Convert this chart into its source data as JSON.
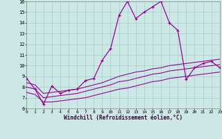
{
  "xlabel": "Windchill (Refroidissement éolien,°C)",
  "bg_color": "#cce8e4",
  "grid_color": "#aacccc",
  "line_color": "#990099",
  "xlim": [
    0,
    23
  ],
  "ylim": [
    6,
    16
  ],
  "xticks": [
    0,
    1,
    2,
    3,
    4,
    5,
    6,
    7,
    8,
    9,
    10,
    11,
    12,
    13,
    14,
    15,
    16,
    17,
    18,
    19,
    20,
    21,
    22,
    23
  ],
  "yticks": [
    6,
    7,
    8,
    9,
    10,
    11,
    12,
    13,
    14,
    15,
    16
  ],
  "line1_x": [
    0,
    1,
    2,
    3,
    4,
    5,
    6,
    7,
    8,
    9,
    10,
    11,
    12,
    13,
    14,
    15,
    16,
    17,
    18,
    19,
    20,
    21,
    22,
    23
  ],
  "line1_y": [
    8.8,
    7.8,
    6.4,
    8.1,
    7.4,
    7.7,
    7.8,
    8.6,
    8.8,
    10.5,
    11.6,
    14.7,
    16.0,
    14.4,
    15.0,
    15.5,
    16.0,
    14.0,
    13.3,
    8.7,
    9.8,
    10.2,
    10.4,
    9.8
  ],
  "line2_x": [
    0,
    1,
    2,
    3,
    4,
    5,
    6,
    7,
    8,
    9,
    10,
    11,
    12,
    13,
    14,
    15,
    16,
    17,
    18,
    19,
    20,
    21,
    22,
    23
  ],
  "line2_y": [
    7.5,
    7.3,
    6.6,
    6.6,
    6.7,
    6.8,
    6.9,
    7.0,
    7.2,
    7.4,
    7.6,
    7.8,
    7.9,
    8.1,
    8.3,
    8.5,
    8.6,
    8.8,
    8.9,
    9.0,
    9.1,
    9.2,
    9.3,
    9.4
  ],
  "line3_x": [
    0,
    1,
    2,
    3,
    4,
    5,
    6,
    7,
    8,
    9,
    10,
    11,
    12,
    13,
    14,
    15,
    16,
    17,
    18,
    19,
    20,
    21,
    22,
    23
  ],
  "line3_y": [
    8.0,
    7.8,
    7.0,
    7.1,
    7.2,
    7.3,
    7.4,
    7.6,
    7.8,
    8.0,
    8.2,
    8.5,
    8.6,
    8.8,
    9.0,
    9.2,
    9.3,
    9.5,
    9.6,
    9.7,
    9.8,
    9.9,
    10.0,
    10.1
  ],
  "line4_x": [
    0,
    1,
    2,
    3,
    4,
    5,
    6,
    7,
    8,
    9,
    10,
    11,
    12,
    13,
    14,
    15,
    16,
    17,
    18,
    19,
    20,
    21,
    22,
    23
  ],
  "line4_y": [
    8.4,
    8.2,
    7.4,
    7.5,
    7.6,
    7.7,
    7.8,
    8.0,
    8.2,
    8.4,
    8.7,
    9.0,
    9.2,
    9.4,
    9.5,
    9.7,
    9.8,
    10.0,
    10.1,
    10.2,
    10.3,
    10.4,
    10.5,
    10.6
  ]
}
